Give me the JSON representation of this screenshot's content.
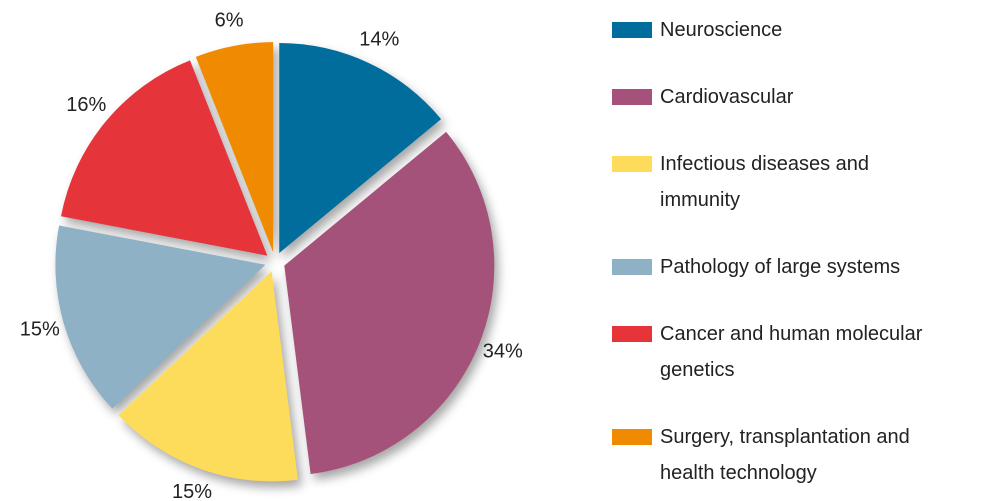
{
  "chart_data": {
    "type": "pie",
    "categories": [
      "Neuroscience",
      "Cardiovascular",
      "Infectious diseases and immunity",
      "Pathology of large systems",
      "Cancer and human molecular genetics",
      "Surgery, transplantation and health technology"
    ],
    "values": [
      14,
      34,
      15,
      15,
      16,
      6
    ],
    "value_labels": [
      "14%",
      "34%",
      "15%",
      "15%",
      "16%",
      "6%"
    ],
    "colors": [
      "#006d9c",
      "#a4527a",
      "#fddc5c",
      "#8fb1c5",
      "#e5343a",
      "#f08a00"
    ],
    "legend": "right"
  }
}
